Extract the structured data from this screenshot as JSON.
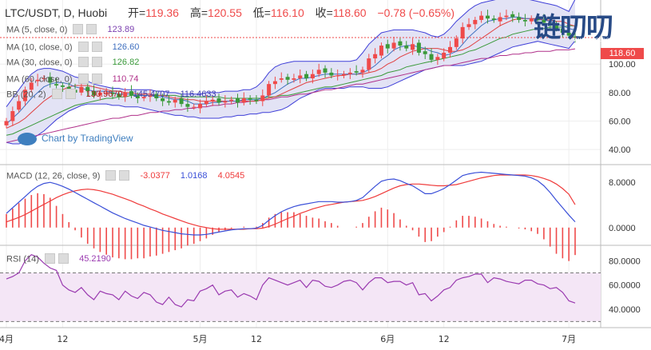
{
  "header": {
    "symbol": "LTC/USDT, D, Huobi",
    "open_label": "开=",
    "open": "119.36",
    "high_label": "高=",
    "high": "120.55",
    "low_label": "低=",
    "low": "116.10",
    "close_label": "收=",
    "close": "118.60",
    "change": "−0.78 (−0.65%)"
  },
  "indicators": [
    {
      "label": "MA (5, close, 0)",
      "value": "123.89",
      "color": "#7b3fb0"
    },
    {
      "label": "MA (10, close, 0)",
      "value": "126.60",
      "color": "#3f6fbf"
    },
    {
      "label": "MA (30, close, 0)",
      "value": "126.82",
      "color": "#3a9a3a"
    },
    {
      "label": "MA (60, close, 0)",
      "value": "110.74",
      "color": "#b0308a"
    },
    {
      "label": "BB (20, 2)",
      "value": "130.9670",
      "value2": "145.4707",
      "value3": "116.4633",
      "color": "#b02020"
    }
  ],
  "macd": {
    "label": "MACD (12, 26, close, 9)",
    "v1": "-3.0377",
    "v2": "1.0168",
    "v3": "4.0545"
  },
  "rsi": {
    "label": "RSI (14)",
    "value": "45.2190"
  },
  "brand": {
    "name": "链叨叨",
    "url": "www.liandaodao.com"
  },
  "watermark": "Chart by TradingView",
  "price_tag": "118.60",
  "colors": {
    "up": "#ef4a4a",
    "down": "#3a9a3a",
    "bb_fill": "#dcdcf2",
    "rsi_fill": "#f4e6f6",
    "ma5": "#7b3fb0",
    "ma10": "#3f6fbf",
    "ma30": "#3a9a3a",
    "ma60": "#b0308a",
    "macd": "#3a4fd8",
    "signal": "#ef3a3a",
    "hist": "#ef4a4a",
    "rsi": "#9a3ab0"
  },
  "chart_data": [
    {
      "type": "candlestick",
      "title": "LTC/USDT, D, Huobi",
      "ylim": [
        30,
        145
      ],
      "y_ticks": [
        40,
        60,
        80,
        100
      ],
      "y_tick_labels": [
        "40.00",
        "60.00",
        "80.00",
        "100.00"
      ],
      "x_tick_labels": [
        "4月",
        "12",
        "5月",
        "12",
        "6月",
        "12",
        "7月"
      ],
      "x_tick_index": [
        0,
        9,
        31,
        40,
        61,
        70,
        90
      ],
      "last_close": 118.6,
      "closes": [
        60,
        67,
        74,
        82,
        87,
        89,
        90,
        87,
        85,
        84,
        82,
        80,
        84,
        81,
        78,
        80,
        80,
        79,
        77,
        80,
        78,
        76,
        77,
        78,
        76,
        74,
        73,
        75,
        72,
        70,
        70,
        72,
        74,
        75,
        73,
        74,
        75,
        73,
        76,
        75,
        74,
        78,
        86,
        88,
        90,
        89,
        90,
        92,
        90,
        93,
        96,
        94,
        92,
        92,
        93,
        94,
        94,
        96,
        104,
        107,
        113,
        111,
        115,
        113,
        111,
        114,
        108,
        107,
        103,
        105,
        108,
        112,
        118,
        126,
        128,
        131,
        134,
        132,
        131,
        133,
        134,
        133,
        131,
        130,
        132,
        131,
        129,
        127,
        125,
        122,
        120,
        118.6
      ],
      "opens": [
        57,
        60,
        68,
        74,
        82,
        88,
        90,
        91,
        86,
        85,
        84,
        82,
        80,
        84,
        81,
        78,
        80,
        80,
        79,
        77,
        81,
        78,
        76,
        77,
        79,
        76,
        74,
        73,
        76,
        72,
        70,
        69,
        72,
        74,
        76,
        73,
        74,
        76,
        73,
        76,
        75,
        74,
        78,
        86,
        89,
        91,
        89,
        90,
        93,
        90,
        93,
        97,
        94,
        92,
        92,
        93,
        95,
        94,
        96,
        104,
        106,
        114,
        111,
        116,
        113,
        110,
        115,
        109,
        107,
        103,
        104,
        108,
        112,
        118,
        126,
        128,
        131,
        134,
        132,
        130,
        133,
        135,
        133,
        131,
        130,
        132,
        131,
        129,
        127,
        125,
        122,
        119.36
      ],
      "ma5": [
        58,
        62,
        66,
        71,
        76,
        80,
        84,
        86,
        87,
        87,
        86,
        84,
        83,
        82,
        81,
        81,
        81,
        80,
        79,
        79,
        79,
        78,
        78,
        78,
        77,
        77,
        76,
        75,
        75,
        74,
        72,
        72,
        72,
        73,
        73,
        74,
        74,
        74,
        75,
        75,
        75,
        76,
        78,
        80,
        83,
        86,
        88,
        90,
        90,
        91,
        92,
        93,
        93,
        93,
        93,
        93,
        93,
        94,
        96,
        99,
        103,
        106,
        110,
        112,
        113,
        113,
        112,
        111,
        109,
        108,
        106,
        107,
        109,
        114,
        119,
        123,
        127,
        130,
        131,
        132,
        132,
        133,
        133,
        132,
        132,
        131,
        131,
        130,
        128,
        127,
        125,
        123.89
      ],
      "ma10": [
        55,
        57,
        59,
        62,
        66,
        70,
        74,
        77,
        80,
        82,
        84,
        85,
        85,
        85,
        84,
        83,
        82,
        81,
        81,
        80,
        80,
        79,
        79,
        79,
        78,
        78,
        77,
        76,
        76,
        75,
        75,
        74,
        74,
        74,
        74,
        74,
        74,
        74,
        74,
        74,
        74,
        75,
        76,
        77,
        79,
        81,
        83,
        85,
        87,
        88,
        89,
        90,
        91,
        92,
        92,
        93,
        93,
        93,
        94,
        95,
        97,
        100,
        102,
        105,
        107,
        109,
        110,
        111,
        111,
        111,
        110,
        109,
        109,
        110,
        112,
        115,
        118,
        121,
        124,
        127,
        129,
        131,
        132,
        132,
        132,
        132,
        131,
        131,
        130,
        130,
        128,
        126.6
      ],
      "ma30": [
        50,
        51,
        53,
        55,
        57,
        59,
        61,
        63,
        65,
        67,
        69,
        71,
        72,
        73,
        74,
        75,
        76,
        76,
        77,
        77,
        78,
        78,
        78,
        78,
        78,
        78,
        78,
        78,
        77,
        77,
        77,
        77,
        77,
        77,
        77,
        76,
        76,
        76,
        76,
        76,
        76,
        76,
        77,
        77,
        78,
        78,
        79,
        80,
        81,
        82,
        83,
        84,
        84,
        85,
        86,
        87,
        88,
        89,
        90,
        91,
        92,
        94,
        95,
        96,
        98,
        99,
        100,
        101,
        102,
        103,
        104,
        105,
        106,
        107,
        109,
        110,
        112,
        114,
        116,
        118,
        119,
        121,
        122,
        123,
        124,
        125,
        125,
        126,
        126,
        126,
        127,
        126.82
      ],
      "ma60": [
        45,
        46,
        47,
        48,
        49,
        50,
        51,
        52,
        53,
        54,
        55,
        56,
        57,
        58,
        59,
        60,
        61,
        62,
        62,
        63,
        64,
        64,
        65,
        66,
        66,
        67,
        67,
        68,
        68,
        69,
        69,
        70,
        70,
        71,
        71,
        72,
        72,
        73,
        73,
        74,
        74,
        75,
        75,
        76,
        77,
        77,
        78,
        79,
        79,
        80,
        81,
        82,
        82,
        83,
        84,
        85,
        86,
        86,
        87,
        88,
        89,
        90,
        91,
        92,
        93,
        94,
        95,
        96,
        97,
        98,
        99,
        99,
        100,
        101,
        102,
        103,
        104,
        104,
        105,
        106,
        106,
        107,
        107,
        108,
        108,
        109,
        109,
        109,
        110,
        110,
        110,
        110.74
      ],
      "bb_upper": [
        70,
        76,
        82,
        88,
        93,
        96,
        97,
        97,
        96,
        95,
        93,
        91,
        90,
        88,
        86,
        85,
        84,
        83,
        83,
        82,
        82,
        82,
        82,
        82,
        81,
        81,
        80,
        80,
        79,
        79,
        79,
        79,
        80,
        80,
        80,
        81,
        81,
        81,
        82,
        82,
        84,
        88,
        94,
        98,
        100,
        101,
        102,
        102,
        102,
        102,
        102,
        102,
        102,
        102,
        102,
        102,
        103,
        108,
        114,
        118,
        122,
        123,
        124,
        124,
        124,
        124,
        123,
        122,
        120,
        119,
        121,
        125,
        130,
        134,
        138,
        141,
        143,
        144,
        145,
        146,
        146,
        146,
        146,
        146,
        145,
        144,
        143,
        142,
        141,
        139,
        137,
        145.47
      ],
      "bb_lower": [
        45,
        44,
        44,
        45,
        47,
        50,
        53,
        57,
        61,
        64,
        67,
        69,
        71,
        72,
        72,
        72,
        72,
        71,
        71,
        70,
        70,
        70,
        69,
        68,
        67,
        66,
        65,
        64,
        64,
        63,
        63,
        62,
        62,
        62,
        62,
        63,
        63,
        64,
        64,
        65,
        65,
        66,
        66,
        67,
        68,
        70,
        73,
        76,
        78,
        80,
        82,
        83,
        83,
        83,
        83,
        84,
        84,
        84,
        83,
        83,
        83,
        84,
        86,
        88,
        90,
        92,
        94,
        96,
        97,
        98,
        99,
        99,
        99,
        99,
        100,
        101,
        102,
        104,
        106,
        108,
        110,
        112,
        113,
        114,
        115,
        116,
        115,
        114,
        113,
        112,
        111,
        116.46
      ]
    },
    {
      "type": "line",
      "title": "MACD (12, 26, close, 9)",
      "ylim": [
        -3,
        11
      ],
      "y_ticks": [
        0,
        8
      ],
      "y_tick_labels": [
        "0.0000",
        "8.0000"
      ],
      "series": [
        {
          "name": "MACD",
          "values": [
            2.5,
            3.5,
            4.5,
            5.5,
            6.5,
            7.3,
            7.8,
            8.0,
            7.7,
            7.3,
            6.8,
            6.2,
            5.6,
            5.0,
            4.4,
            3.8,
            3.2,
            2.6,
            2.1,
            1.6,
            1.2,
            0.8,
            0.4,
            0.1,
            -0.2,
            -0.5,
            -0.7,
            -0.9,
            -1.1,
            -1.2,
            -1.3,
            -1.3,
            -1.2,
            -1.0,
            -0.8,
            -0.6,
            -0.4,
            -0.3,
            -0.2,
            -0.2,
            -0.1,
            0.4,
            1.3,
            2.1,
            2.8,
            3.3,
            3.7,
            4.0,
            4.2,
            4.4,
            4.6,
            4.6,
            4.6,
            4.5,
            4.5,
            4.6,
            4.8,
            5.3,
            6.3,
            7.3,
            8.2,
            8.5,
            8.6,
            8.3,
            7.8,
            7.4,
            6.7,
            6.0,
            6.0,
            6.4,
            6.9,
            7.6,
            8.4,
            9.2,
            9.5,
            9.7,
            9.8,
            9.7,
            9.6,
            9.5,
            9.4,
            9.3,
            9.2,
            9.1,
            8.8,
            8.3,
            7.4,
            6.2,
            4.8,
            3.5,
            2.2,
            1.0168
          ]
        },
        {
          "name": "Signal",
          "values": [
            1.0,
            1.4,
            1.8,
            2.3,
            2.9,
            3.5,
            4.1,
            4.7,
            5.3,
            5.8,
            6.2,
            6.5,
            6.7,
            6.8,
            6.7,
            6.5,
            6.2,
            5.9,
            5.5,
            5.1,
            4.7,
            4.2,
            3.8,
            3.3,
            2.9,
            2.4,
            2.0,
            1.6,
            1.2,
            0.8,
            0.5,
            0.2,
            0.0,
            -0.2,
            -0.3,
            -0.3,
            -0.3,
            -0.3,
            -0.3,
            -0.2,
            -0.2,
            -0.1,
            0.2,
            0.6,
            1.1,
            1.6,
            2.0,
            2.5,
            2.9,
            3.3,
            3.6,
            3.9,
            4.1,
            4.3,
            4.5,
            4.6,
            4.7,
            4.8,
            5.1,
            5.5,
            6.0,
            6.5,
            7.0,
            7.4,
            7.6,
            7.7,
            7.7,
            7.6,
            7.5,
            7.4,
            7.4,
            7.5,
            7.6,
            7.9,
            8.2,
            8.5,
            8.8,
            9.0,
            9.2,
            9.3,
            9.3,
            9.3,
            9.3,
            9.3,
            9.2,
            9.0,
            8.7,
            8.3,
            7.7,
            6.9,
            5.9,
            4.0545
          ]
        }
      ]
    },
    {
      "type": "line",
      "title": "RSI (14)",
      "ylim": [
        25,
        92
      ],
      "y_ticks": [
        40,
        60,
        80
      ],
      "y_tick_labels": [
        "40.0000",
        "60.0000",
        "80.0000"
      ],
      "bands": [
        70,
        30
      ],
      "series": [
        {
          "name": "RSI",
          "values": [
            65,
            67,
            70,
            80,
            85,
            83,
            78,
            74,
            72,
            60,
            56,
            54,
            58,
            52,
            48,
            55,
            53,
            52,
            48,
            55,
            51,
            49,
            54,
            52,
            46,
            44,
            50,
            44,
            42,
            48,
            47,
            55,
            57,
            60,
            52,
            55,
            56,
            50,
            53,
            51,
            48,
            60,
            66,
            64,
            62,
            60,
            62,
            64,
            58,
            64,
            63,
            59,
            58,
            60,
            63,
            64,
            62,
            56,
            62,
            66,
            66,
            62,
            63,
            63,
            60,
            62,
            52,
            53,
            47,
            51,
            56,
            58,
            64,
            66,
            67,
            69,
            69,
            62,
            66,
            65,
            63,
            62,
            61,
            64,
            64,
            61,
            60,
            57,
            58,
            54,
            47,
            45.2
          ]
        }
      ]
    }
  ]
}
